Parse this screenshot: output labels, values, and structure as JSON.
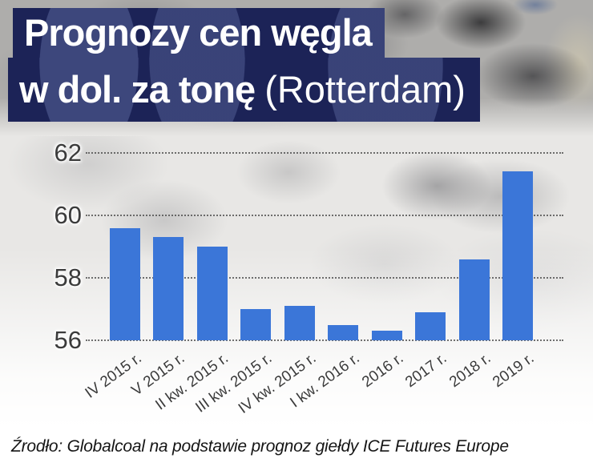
{
  "title": {
    "line1": "Prognozy cen węgla",
    "line2_bold": "w dol. za tonę ",
    "line2_regular": "(Rotterdam)"
  },
  "source": "Źrodło: Globalcoal na podstawie prognoz giełdy ICE Futures Europe",
  "colors": {
    "bar": "#3b76d8",
    "title_background": "#1c2357",
    "axis_text": "#3b3b3b",
    "gridline": "#4a4a4a"
  },
  "chart_data": {
    "type": "bar",
    "title": "Prognozy cen węgla w dol. za tonę (Rotterdam)",
    "categories": [
      "IV 2015 r.",
      "V 2015 r.",
      "II kw. 2015 r.",
      "III kw. 2015 r.",
      "IV kw. 2015 r.",
      "I kw. 2016 r.",
      "2016 r.",
      "2017 r.",
      "2018 r.",
      "2019 r."
    ],
    "values": [
      59.6,
      59.3,
      59.0,
      57.0,
      57.1,
      56.5,
      56.3,
      56.9,
      58.6,
      61.4
    ],
    "xlabel": "",
    "ylabel": "dol. za tonę",
    "ylim": [
      56,
      62.6
    ],
    "yticks": [
      56,
      58,
      60,
      62
    ],
    "grid": "dotted-horizontal",
    "legend": "none",
    "bar_color": "#3b76d8"
  }
}
